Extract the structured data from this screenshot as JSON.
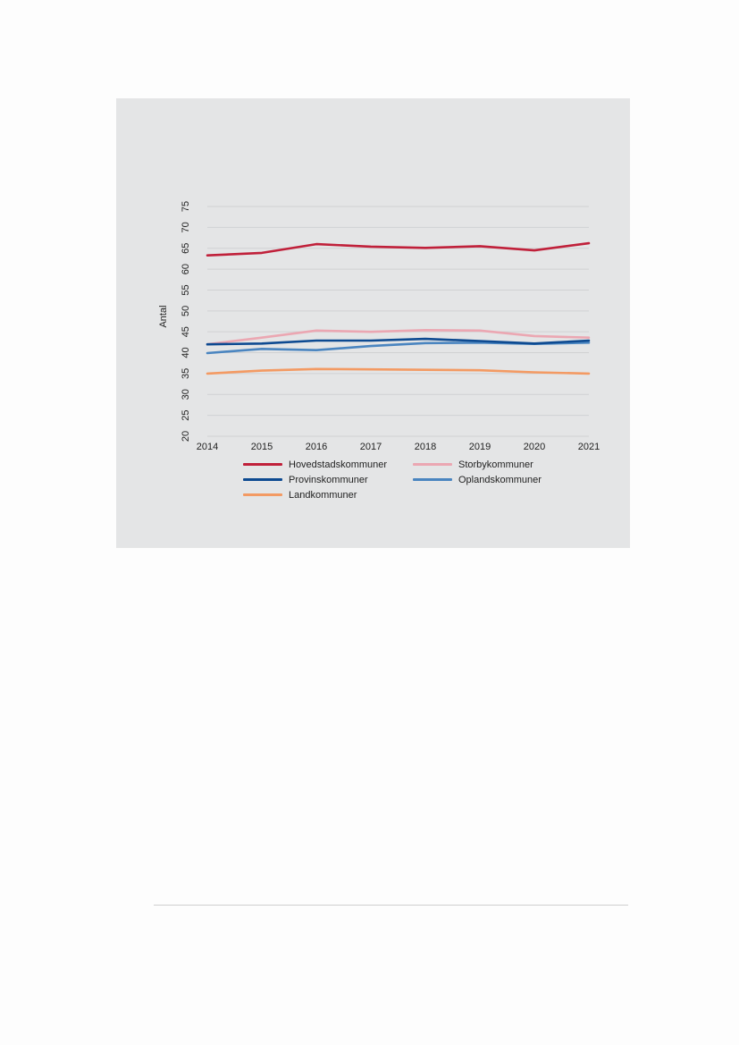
{
  "chart_data": {
    "type": "line",
    "title": "",
    "xlabel": "",
    "ylabel": "Antal",
    "ylim": [
      20,
      75
    ],
    "yticks": [
      20,
      25,
      30,
      35,
      40,
      45,
      50,
      55,
      60,
      65,
      70,
      75
    ],
    "x": [
      "2014",
      "2015",
      "2016",
      "2017",
      "2018",
      "2019",
      "2020",
      "2021"
    ],
    "grid": "horizontal",
    "legend_position": "bottom",
    "series": [
      {
        "name": "Hovedstadskommuner",
        "color": "#c0203a",
        "values": [
          63.3,
          63.9,
          66.0,
          65.4,
          65.1,
          65.5,
          64.5,
          66.2
        ]
      },
      {
        "name": "Storbykommuner",
        "color": "#eba7b2",
        "values": [
          42.0,
          43.6,
          45.3,
          45.0,
          45.4,
          45.3,
          44.0,
          43.6
        ]
      },
      {
        "name": "Provinskommuner",
        "color": "#0d4a91",
        "values": [
          42.0,
          42.2,
          42.9,
          42.9,
          43.3,
          42.8,
          42.2,
          42.9
        ]
      },
      {
        "name": "Oplandskommuner",
        "color": "#4a85c0",
        "values": [
          39.9,
          40.9,
          40.6,
          41.6,
          42.3,
          42.4,
          42.1,
          42.4
        ]
      },
      {
        "name": "Landkommuner",
        "color": "#f39a63",
        "values": [
          35.0,
          35.7,
          36.1,
          36.0,
          35.9,
          35.8,
          35.3,
          35.0
        ]
      }
    ]
  }
}
